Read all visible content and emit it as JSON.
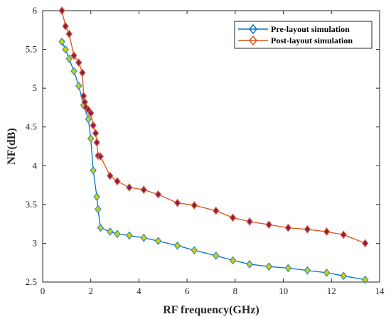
{
  "chart_data": {
    "type": "line",
    "title": "",
    "xlabel": "RF frequency(GHz)",
    "ylabel": "NF(dB)",
    "xlim": [
      0,
      14
    ],
    "ylim": [
      2.5,
      6
    ],
    "xticks": [
      "0",
      "2",
      "4",
      "6",
      "8",
      "10",
      "12",
      "14"
    ],
    "yticks": [
      "2.5",
      "3",
      "3.5",
      "4",
      "4.5",
      "5",
      "5.5",
      "6"
    ],
    "grid": false,
    "legend_position": "top-right",
    "series": [
      {
        "name": "Pre-layout simulation",
        "color": "#0072BD",
        "marker": "diamond",
        "x": [
          0.8,
          0.95,
          1.1,
          1.3,
          1.5,
          1.7,
          1.9,
          2.0,
          2.1,
          2.25,
          2.3,
          2.4,
          2.8,
          3.1,
          3.6,
          4.2,
          4.8,
          5.6,
          6.3,
          7.2,
          7.9,
          8.6,
          9.4,
          10.2,
          11.0,
          11.8,
          12.5,
          13.4
        ],
        "y": [
          5.6,
          5.5,
          5.38,
          5.22,
          5.03,
          4.78,
          4.6,
          4.35,
          3.94,
          3.6,
          3.44,
          3.2,
          3.15,
          3.12,
          3.1,
          3.07,
          3.03,
          2.97,
          2.91,
          2.84,
          2.78,
          2.73,
          2.7,
          2.68,
          2.65,
          2.62,
          2.58,
          2.53
        ]
      },
      {
        "name": "Post-layout simulation",
        "color": "#D95319",
        "marker": "diamond",
        "x": [
          0.8,
          0.95,
          1.1,
          1.3,
          1.5,
          1.65,
          1.7,
          1.75,
          1.8,
          1.9,
          2.0,
          2.1,
          2.2,
          2.25,
          2.3,
          2.4,
          2.8,
          3.1,
          3.6,
          4.2,
          4.8,
          5.6,
          6.3,
          7.2,
          7.9,
          8.6,
          9.4,
          10.2,
          11.0,
          11.8,
          12.5,
          13.4
        ],
        "y": [
          6.0,
          5.8,
          5.7,
          5.42,
          5.33,
          5.2,
          4.9,
          4.82,
          4.75,
          4.72,
          4.68,
          4.52,
          4.42,
          4.3,
          4.13,
          4.12,
          3.87,
          3.8,
          3.72,
          3.69,
          3.63,
          3.52,
          3.49,
          3.42,
          3.33,
          3.28,
          3.24,
          3.2,
          3.18,
          3.15,
          3.11,
          3.0
        ]
      }
    ]
  }
}
